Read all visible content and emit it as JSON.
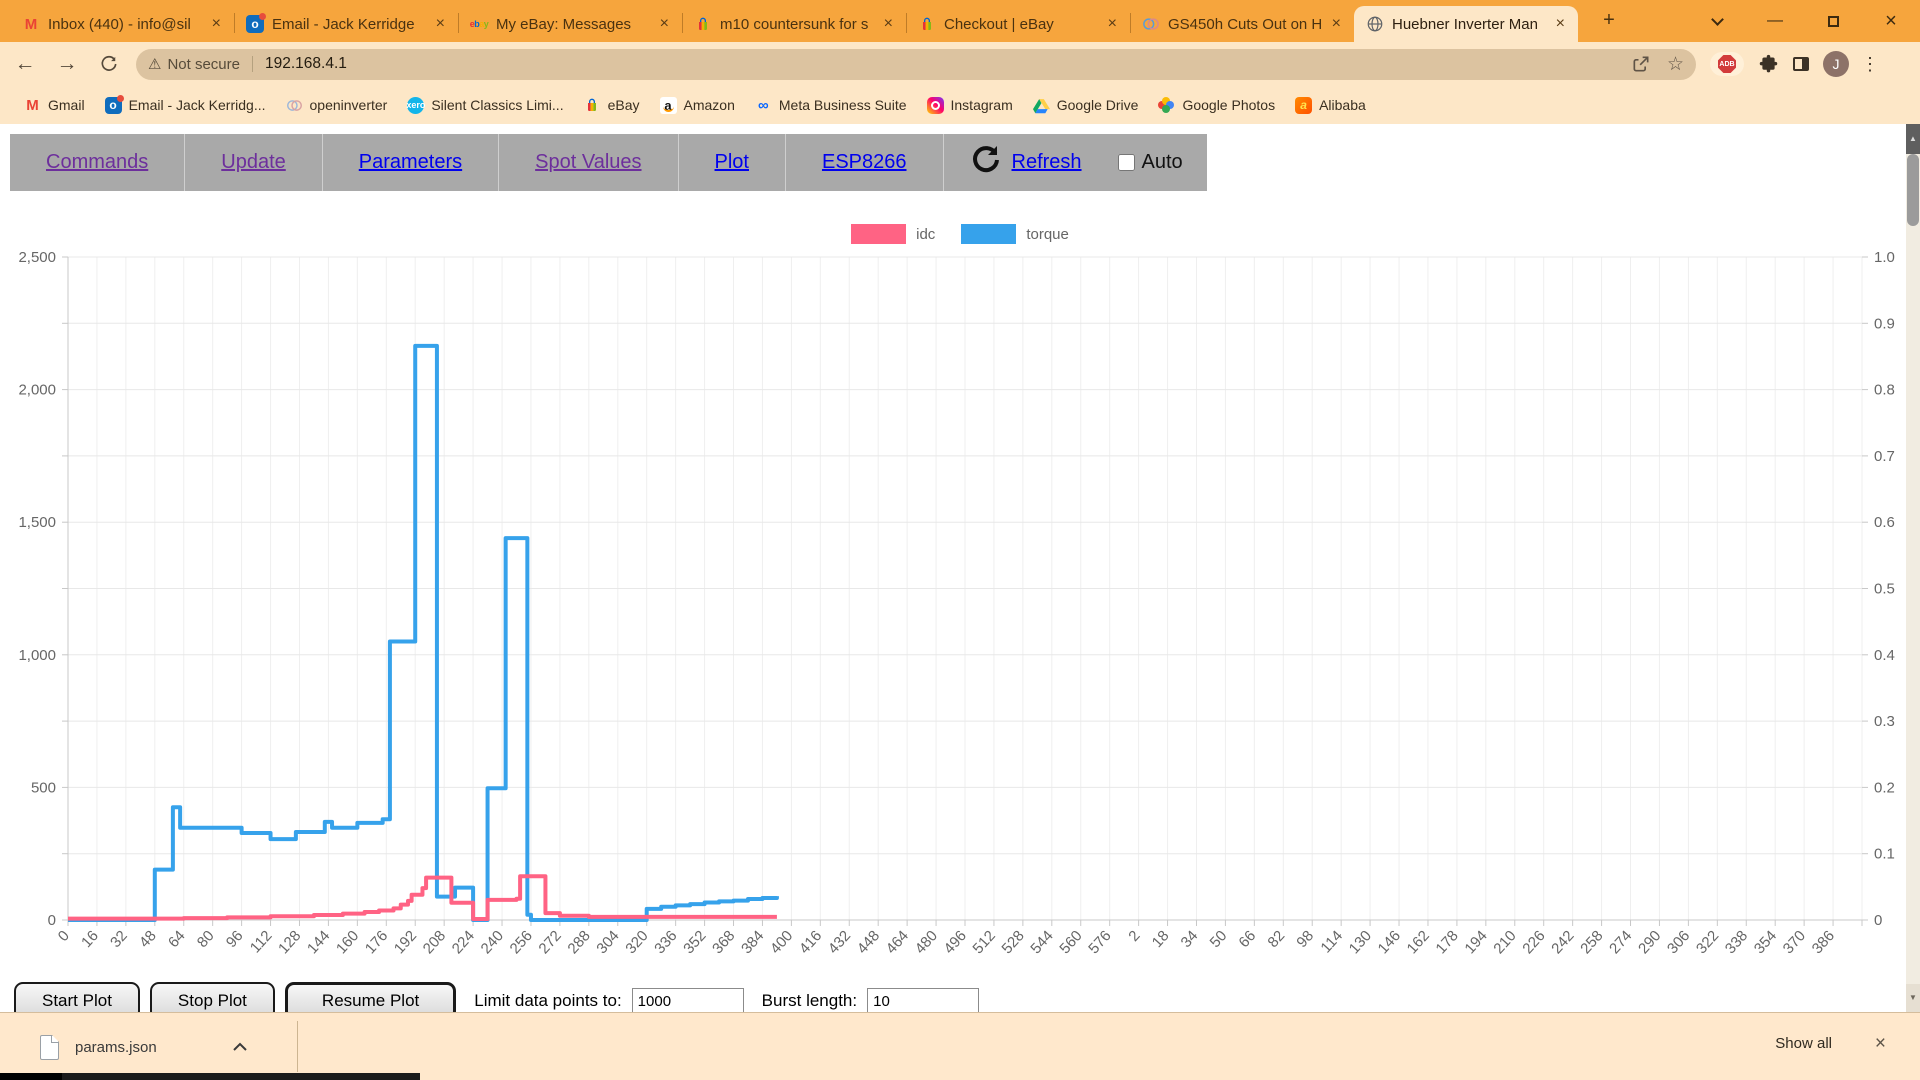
{
  "browser": {
    "tabs": [
      {
        "title": "Inbox (440) - info@sil",
        "icon": "gmail"
      },
      {
        "title": "Email - Jack Kerridge",
        "icon": "outlook"
      },
      {
        "title": "My eBay: Messages",
        "icon": "ebay-letters"
      },
      {
        "title": "m10 countersunk for s",
        "icon": "ebay-bag"
      },
      {
        "title": "Checkout | eBay",
        "icon": "ebay-bag"
      },
      {
        "title": "GS450h Cuts Out on H",
        "icon": "openinverter"
      },
      {
        "title": "Huebner Inverter Man",
        "icon": "globe"
      }
    ],
    "glyphs": {
      "new_tab": "+",
      "close": "×",
      "minimize": "—",
      "kebab": "⋮",
      "back": "←",
      "forward": "→",
      "star": "☆",
      "warning": "⚠",
      "up_arrow": "▲",
      "down_arrow": "▼"
    },
    "address": {
      "security_label": "Not secure",
      "url": "192.168.4.1"
    },
    "adblock_label": "ADB",
    "profile_initial": "J",
    "bookmarks": [
      {
        "label": "Gmail",
        "icon": "gmail"
      },
      {
        "label": "Email - Jack Kerridg...",
        "icon": "outlook"
      },
      {
        "label": "openinverter",
        "icon": "openinverter"
      },
      {
        "label": "Silent Classics Limi...",
        "icon": "xero"
      },
      {
        "label": "eBay",
        "icon": "ebay-bag"
      },
      {
        "label": "Amazon",
        "icon": "amazon"
      },
      {
        "label": "Meta Business Suite",
        "icon": "meta"
      },
      {
        "label": "Instagram",
        "icon": "instagram"
      },
      {
        "label": "Google Drive",
        "icon": "drive"
      },
      {
        "label": "Google Photos",
        "icon": "photos"
      },
      {
        "label": "Alibaba",
        "icon": "alibaba"
      }
    ]
  },
  "page": {
    "nav": {
      "items": [
        {
          "label": "Commands",
          "state": "visited"
        },
        {
          "label": "Update",
          "state": "visited"
        },
        {
          "label": "Parameters",
          "state": "new"
        },
        {
          "label": "Spot Values",
          "state": "visited"
        },
        {
          "label": "Plot",
          "state": "new"
        },
        {
          "label": "ESP8266",
          "state": "new"
        }
      ],
      "refresh_label": "Refresh",
      "auto_label": "Auto"
    },
    "controls": {
      "start": "Start Plot",
      "stop": "Stop Plot",
      "resume": "Resume Plot",
      "limit_label": "Limit data points to:",
      "limit_value": "1000",
      "burst_label": "Burst length:",
      "burst_value": "10"
    }
  },
  "shelf": {
    "filename": "params.json",
    "show_all": "Show all"
  },
  "chart_data": {
    "type": "line",
    "stepped": true,
    "grid": true,
    "legend_position": "top",
    "y_left": {
      "min": 0,
      "max": 2500,
      "tick_labels": [
        "2,500",
        "2,000",
        "1,500",
        "1,000",
        "500",
        "0"
      ]
    },
    "y_right": {
      "min": 0,
      "max": 1.0,
      "tick_labels": [
        "1.0",
        "0.9",
        "0.8",
        "0.7",
        "0.6",
        "0.5",
        "0.4",
        "0.3",
        "0.2",
        "0.1",
        "0"
      ]
    },
    "x_labels": [
      "0",
      "16",
      "32",
      "48",
      "64",
      "80",
      "96",
      "112",
      "128",
      "144",
      "160",
      "176",
      "192",
      "208",
      "224",
      "240",
      "256",
      "272",
      "288",
      "304",
      "320",
      "336",
      "352",
      "368",
      "384",
      "400",
      "416",
      "432",
      "448",
      "464",
      "480",
      "496",
      "512",
      "528",
      "544",
      "560",
      "576",
      "2",
      "18",
      "34",
      "50",
      "66",
      "82",
      "98",
      "114",
      "130",
      "146",
      "162",
      "178",
      "194",
      "210",
      "226",
      "242",
      "258",
      "274",
      "290",
      "306",
      "322",
      "338",
      "354",
      "370",
      "386"
    ],
    "x_units_per_tick": 16,
    "series": [
      {
        "name": "idc",
        "color": "#ff6384",
        "axis": "left",
        "points": [
          [
            0,
            5
          ],
          [
            56,
            5
          ],
          [
            64,
            7
          ],
          [
            88,
            10
          ],
          [
            112,
            14
          ],
          [
            136,
            19
          ],
          [
            152,
            24
          ],
          [
            164,
            30
          ],
          [
            172,
            36
          ],
          [
            180,
            44
          ],
          [
            184,
            58
          ],
          [
            188,
            72
          ],
          [
            190,
            95
          ],
          [
            196,
            120
          ],
          [
            198,
            160
          ],
          [
            210,
            160
          ],
          [
            212,
            65
          ],
          [
            222,
            65
          ],
          [
            224,
            4
          ],
          [
            230,
            4
          ],
          [
            232,
            76
          ],
          [
            248,
            80
          ],
          [
            250,
            165
          ],
          [
            262,
            165
          ],
          [
            264,
            26
          ],
          [
            272,
            16
          ],
          [
            288,
            12
          ],
          [
            392,
            12
          ]
        ]
      },
      {
        "name": "torque",
        "color": "#36a2eb",
        "axis": "left",
        "points": [
          [
            0,
            0
          ],
          [
            46,
            0
          ],
          [
            48,
            190
          ],
          [
            58,
            425
          ],
          [
            62,
            348
          ],
          [
            94,
            348
          ],
          [
            96,
            328
          ],
          [
            110,
            328
          ],
          [
            112,
            305
          ],
          [
            124,
            305
          ],
          [
            126,
            332
          ],
          [
            140,
            332
          ],
          [
            142,
            370
          ],
          [
            146,
            348
          ],
          [
            158,
            348
          ],
          [
            160,
            366
          ],
          [
            172,
            366
          ],
          [
            174,
            380
          ],
          [
            176,
            380
          ],
          [
            178,
            1050
          ],
          [
            190,
            1050
          ],
          [
            192,
            2165
          ],
          [
            202,
            2165
          ],
          [
            204,
            88
          ],
          [
            212,
            88
          ],
          [
            214,
            122
          ],
          [
            222,
            122
          ],
          [
            224,
            0
          ],
          [
            230,
            0
          ],
          [
            232,
            497
          ],
          [
            240,
            497
          ],
          [
            242,
            1440
          ],
          [
            252,
            1440
          ],
          [
            254,
            20
          ],
          [
            256,
            0
          ],
          [
            318,
            0
          ],
          [
            320,
            42
          ],
          [
            328,
            50
          ],
          [
            336,
            55
          ],
          [
            344,
            60
          ],
          [
            352,
            66
          ],
          [
            360,
            70
          ],
          [
            368,
            73
          ],
          [
            376,
            79
          ],
          [
            384,
            83
          ],
          [
            392,
            90
          ]
        ]
      }
    ]
  }
}
